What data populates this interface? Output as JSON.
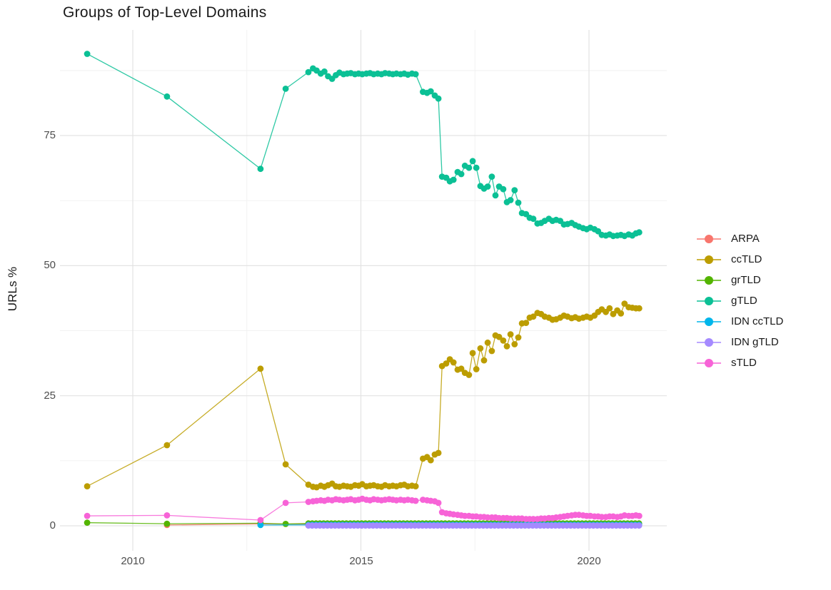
{
  "title": "Groups of Top-Level Domains",
  "chart_data": {
    "type": "line",
    "title": "Groups of Top-Level Domains",
    "xlabel": "",
    "ylabel": "URLs %",
    "xlim": [
      2008.4,
      2021.8
    ],
    "ylim": [
      -4.5,
      95.5
    ],
    "grid": "on",
    "legend_position": "right",
    "x_ticks": {
      "values": [
        2010,
        2015,
        2020
      ],
      "labels": [
        "2010",
        "2015",
        "2020"
      ]
    },
    "x_minor_ticks": [
      2012.5,
      2017.5
    ],
    "y_ticks": {
      "values": [
        0,
        25,
        50,
        75
      ],
      "labels": [
        "0",
        "25",
        "50",
        "75"
      ]
    },
    "y_minor_ticks": [
      12.5,
      37.5,
      62.5,
      87.5
    ],
    "colors": {
      "major_grid": "#e3e3e3",
      "minor_grid": "#f1f1f1",
      "tick_text": "#4d4d4d",
      "title_text": "#191919"
    },
    "series": [
      {
        "name": "ARPA",
        "color": "#F8766D",
        "points": [
          [
            2010.75,
            0.15
          ],
          [
            2012.8,
            0.35
          ],
          {
            "x0": 2013.85,
            "x1": 2021.1,
            "dx": 0.0833,
            "y": 0.3
          }
        ]
      },
      {
        "name": "ccTLD",
        "color": "#BC9D00",
        "points": [
          [
            2009.0,
            7.6
          ],
          [
            2010.75,
            15.5
          ],
          [
            2012.8,
            30.2
          ],
          [
            2013.35,
            11.8
          ],
          [
            2013.85,
            7.9
          ],
          [
            2013.95,
            7.5
          ],
          [
            2014.03,
            7.4
          ],
          [
            2014.12,
            7.7
          ],
          [
            2014.2,
            7.5
          ],
          [
            2014.28,
            7.8
          ],
          [
            2014.37,
            8.1
          ],
          [
            2014.45,
            7.6
          ],
          [
            2014.53,
            7.5
          ],
          [
            2014.62,
            7.7
          ],
          [
            2014.7,
            7.6
          ],
          [
            2014.78,
            7.5
          ],
          [
            2014.87,
            7.8
          ],
          [
            2014.95,
            7.7
          ],
          [
            2015.03,
            8.0
          ],
          [
            2015.12,
            7.6
          ],
          [
            2015.2,
            7.7
          ],
          [
            2015.28,
            7.8
          ],
          [
            2015.37,
            7.6
          ],
          [
            2015.45,
            7.5
          ],
          [
            2015.53,
            7.8
          ],
          [
            2015.62,
            7.6
          ],
          [
            2015.7,
            7.7
          ],
          [
            2015.78,
            7.6
          ],
          [
            2015.87,
            7.8
          ],
          [
            2015.95,
            7.9
          ],
          [
            2016.03,
            7.6
          ],
          [
            2016.12,
            7.7
          ],
          [
            2016.2,
            7.6
          ],
          [
            2016.36,
            12.9
          ],
          [
            2016.45,
            13.2
          ],
          [
            2016.53,
            12.6
          ],
          [
            2016.62,
            13.7
          ],
          [
            2016.7,
            14.0
          ],
          [
            2016.78,
            30.7
          ],
          [
            2016.87,
            31.2
          ],
          [
            2016.95,
            32.0
          ],
          [
            2017.03,
            31.4
          ],
          [
            2017.12,
            30.0
          ],
          [
            2017.2,
            30.2
          ],
          [
            2017.28,
            29.4
          ],
          [
            2017.37,
            29.0
          ],
          [
            2017.45,
            33.2
          ],
          [
            2017.53,
            30.1
          ],
          [
            2017.62,
            34.1
          ],
          [
            2017.7,
            31.8
          ],
          [
            2017.78,
            35.2
          ],
          [
            2017.87,
            33.6
          ],
          [
            2017.95,
            36.6
          ],
          [
            2018.03,
            36.3
          ],
          [
            2018.12,
            35.6
          ],
          [
            2018.2,
            34.5
          ],
          [
            2018.28,
            36.8
          ],
          [
            2018.37,
            34.9
          ],
          [
            2018.45,
            36.2
          ],
          [
            2018.53,
            38.9
          ],
          [
            2018.62,
            39.0
          ],
          [
            2018.7,
            40.0
          ],
          [
            2018.78,
            40.2
          ],
          [
            2018.87,
            40.9
          ],
          [
            2018.95,
            40.7
          ],
          [
            2019.03,
            40.2
          ],
          [
            2019.12,
            40.0
          ],
          [
            2019.2,
            39.6
          ],
          [
            2019.28,
            39.7
          ],
          [
            2019.37,
            40.0
          ],
          [
            2019.45,
            40.4
          ],
          [
            2019.53,
            40.2
          ],
          [
            2019.62,
            39.9
          ],
          [
            2019.7,
            40.1
          ],
          [
            2019.78,
            39.8
          ],
          [
            2019.87,
            40.0
          ],
          [
            2019.95,
            40.2
          ],
          [
            2020.03,
            40.0
          ],
          [
            2020.12,
            40.4
          ],
          [
            2020.2,
            41.1
          ],
          [
            2020.28,
            41.6
          ],
          [
            2020.37,
            41.1
          ],
          [
            2020.45,
            41.8
          ],
          [
            2020.53,
            40.7
          ],
          [
            2020.62,
            41.4
          ],
          [
            2020.7,
            40.8
          ],
          [
            2020.78,
            42.7
          ],
          [
            2020.87,
            42.0
          ],
          [
            2020.95,
            41.9
          ],
          [
            2021.03,
            41.8
          ],
          [
            2021.1,
            41.8
          ]
        ]
      },
      {
        "name": "grTLD",
        "color": "#53B400",
        "points": [
          [
            2009.0,
            0.6
          ],
          [
            2010.75,
            0.4
          ],
          [
            2012.8,
            0.5
          ],
          [
            2013.35,
            0.35
          ],
          {
            "x0": 2013.85,
            "x1": 2021.1,
            "dx": 0.0833,
            "y": 0.45
          }
        ]
      },
      {
        "name": "gTLD",
        "color": "#0BC095",
        "points": [
          [
            2009.0,
            90.7
          ],
          [
            2010.75,
            82.5
          ],
          [
            2012.8,
            68.6
          ],
          [
            2013.35,
            84.0
          ],
          [
            2013.85,
            87.2
          ],
          [
            2013.95,
            87.9
          ],
          [
            2014.03,
            87.5
          ],
          [
            2014.12,
            86.9
          ],
          [
            2014.2,
            87.3
          ],
          [
            2014.28,
            86.4
          ],
          [
            2014.37,
            85.9
          ],
          [
            2014.45,
            86.6
          ],
          [
            2014.53,
            87.1
          ],
          [
            2014.62,
            86.8
          ],
          [
            2014.7,
            86.9
          ],
          [
            2014.78,
            87.0
          ],
          [
            2014.87,
            86.8
          ],
          [
            2014.95,
            86.9
          ],
          [
            2015.03,
            86.8
          ],
          [
            2015.12,
            86.9
          ],
          [
            2015.2,
            87.0
          ],
          [
            2015.28,
            86.8
          ],
          [
            2015.37,
            86.9
          ],
          [
            2015.45,
            86.8
          ],
          [
            2015.53,
            87.0
          ],
          [
            2015.62,
            86.9
          ],
          [
            2015.7,
            86.8
          ],
          [
            2015.78,
            86.9
          ],
          [
            2015.87,
            86.8
          ],
          [
            2015.95,
            86.9
          ],
          [
            2016.03,
            86.7
          ],
          [
            2016.12,
            86.9
          ],
          [
            2016.2,
            86.8
          ],
          [
            2016.36,
            83.4
          ],
          [
            2016.45,
            83.2
          ],
          [
            2016.53,
            83.5
          ],
          [
            2016.62,
            82.7
          ],
          [
            2016.7,
            82.1
          ],
          [
            2016.78,
            67.1
          ],
          [
            2016.87,
            66.9
          ],
          [
            2016.95,
            66.2
          ],
          [
            2017.03,
            66.5
          ],
          [
            2017.12,
            68.0
          ],
          [
            2017.2,
            67.6
          ],
          [
            2017.28,
            69.2
          ],
          [
            2017.37,
            68.8
          ],
          [
            2017.45,
            70.1
          ],
          [
            2017.53,
            68.8
          ],
          [
            2017.62,
            65.3
          ],
          [
            2017.7,
            64.8
          ],
          [
            2017.78,
            65.2
          ],
          [
            2017.87,
            67.1
          ],
          [
            2017.95,
            63.5
          ],
          [
            2018.03,
            65.2
          ],
          [
            2018.12,
            64.7
          ],
          [
            2018.2,
            62.2
          ],
          [
            2018.28,
            62.6
          ],
          [
            2018.37,
            64.5
          ],
          [
            2018.45,
            62.1
          ],
          [
            2018.53,
            60.1
          ],
          [
            2018.62,
            59.9
          ],
          [
            2018.7,
            59.2
          ],
          [
            2018.78,
            59.0
          ],
          [
            2018.87,
            58.1
          ],
          [
            2018.95,
            58.2
          ],
          [
            2019.03,
            58.6
          ],
          [
            2019.12,
            59.0
          ],
          [
            2019.2,
            58.6
          ],
          [
            2019.28,
            58.8
          ],
          [
            2019.37,
            58.6
          ],
          [
            2019.45,
            57.9
          ],
          [
            2019.53,
            58.0
          ],
          [
            2019.62,
            58.2
          ],
          [
            2019.7,
            57.8
          ],
          [
            2019.78,
            57.5
          ],
          [
            2019.87,
            57.2
          ],
          [
            2019.95,
            57.0
          ],
          [
            2020.03,
            57.3
          ],
          [
            2020.12,
            57.0
          ],
          [
            2020.2,
            56.6
          ],
          [
            2020.28,
            55.9
          ],
          [
            2020.37,
            55.8
          ],
          [
            2020.45,
            56.0
          ],
          [
            2020.53,
            55.7
          ],
          [
            2020.62,
            55.8
          ],
          [
            2020.7,
            55.9
          ],
          [
            2020.78,
            55.7
          ],
          [
            2020.87,
            56.0
          ],
          [
            2020.95,
            55.8
          ],
          [
            2021.03,
            56.2
          ],
          [
            2021.1,
            56.4
          ]
        ]
      },
      {
        "name": "IDN ccTLD",
        "color": "#00B6EB",
        "points": [
          [
            2012.8,
            0.15
          ],
          {
            "x0": 2013.85,
            "x1": 2021.1,
            "dx": 0.0833,
            "y": 0.18
          }
        ]
      },
      {
        "name": "IDN gTLD",
        "color": "#A58AFF",
        "points": [
          {
            "x0": 2013.85,
            "x1": 2021.1,
            "dx": 0.0833,
            "y": 0.04
          }
        ]
      },
      {
        "name": "sTLD",
        "color": "#F763D7",
        "points": [
          [
            2009.0,
            1.9
          ],
          [
            2010.75,
            2.0
          ],
          [
            2012.8,
            1.1
          ],
          [
            2013.35,
            4.4
          ],
          [
            2013.85,
            4.6
          ],
          [
            2013.95,
            4.7
          ],
          [
            2014.03,
            4.8
          ],
          [
            2014.12,
            4.9
          ],
          [
            2014.2,
            4.8
          ],
          [
            2014.28,
            5.0
          ],
          [
            2014.37,
            4.9
          ],
          [
            2014.45,
            5.1
          ],
          [
            2014.53,
            5.0
          ],
          [
            2014.62,
            4.9
          ],
          [
            2014.7,
            5.0
          ],
          [
            2014.78,
            5.1
          ],
          [
            2014.87,
            4.9
          ],
          [
            2014.95,
            5.0
          ],
          [
            2015.03,
            5.2
          ],
          [
            2015.12,
            5.0
          ],
          [
            2015.2,
            4.9
          ],
          [
            2015.28,
            5.1
          ],
          [
            2015.37,
            5.0
          ],
          [
            2015.45,
            4.9
          ],
          [
            2015.53,
            5.0
          ],
          [
            2015.62,
            5.1
          ],
          [
            2015.7,
            5.0
          ],
          [
            2015.78,
            4.9
          ],
          [
            2015.87,
            5.0
          ],
          [
            2015.95,
            4.9
          ],
          [
            2016.03,
            5.0
          ],
          [
            2016.12,
            4.9
          ],
          [
            2016.2,
            4.8
          ],
          [
            2016.36,
            5.0
          ],
          [
            2016.45,
            4.9
          ],
          [
            2016.53,
            4.8
          ],
          [
            2016.62,
            4.7
          ],
          [
            2016.7,
            4.4
          ],
          [
            2016.78,
            2.6
          ],
          [
            2016.87,
            2.4
          ],
          [
            2016.95,
            2.3
          ],
          [
            2017.03,
            2.2
          ],
          [
            2017.12,
            2.1
          ],
          [
            2017.2,
            2.0
          ],
          [
            2017.28,
            1.9
          ],
          [
            2017.37,
            1.9
          ],
          [
            2017.45,
            1.8
          ],
          [
            2017.53,
            1.8
          ],
          [
            2017.62,
            1.7
          ],
          [
            2017.7,
            1.7
          ],
          [
            2017.78,
            1.6
          ],
          [
            2017.87,
            1.6
          ],
          [
            2017.95,
            1.6
          ],
          [
            2018.03,
            1.5
          ],
          [
            2018.12,
            1.5
          ],
          [
            2018.2,
            1.5
          ],
          [
            2018.28,
            1.4
          ],
          [
            2018.37,
            1.4
          ],
          [
            2018.45,
            1.4
          ],
          [
            2018.53,
            1.4
          ],
          [
            2018.62,
            1.3
          ],
          [
            2018.7,
            1.3
          ],
          [
            2018.78,
            1.3
          ],
          [
            2018.87,
            1.3
          ],
          [
            2018.95,
            1.4
          ],
          [
            2019.03,
            1.4
          ],
          [
            2019.12,
            1.5
          ],
          [
            2019.2,
            1.5
          ],
          [
            2019.28,
            1.6
          ],
          [
            2019.37,
            1.7
          ],
          [
            2019.45,
            1.8
          ],
          [
            2019.53,
            1.9
          ],
          [
            2019.62,
            2.0
          ],
          [
            2019.7,
            2.1
          ],
          [
            2019.78,
            2.1
          ],
          [
            2019.87,
            2.0
          ],
          [
            2019.95,
            1.9
          ],
          [
            2020.03,
            1.9
          ],
          [
            2020.12,
            1.8
          ],
          [
            2020.2,
            1.8
          ],
          [
            2020.28,
            1.7
          ],
          [
            2020.37,
            1.7
          ],
          [
            2020.45,
            1.8
          ],
          [
            2020.53,
            1.8
          ],
          [
            2020.62,
            1.7
          ],
          [
            2020.7,
            1.8
          ],
          [
            2020.78,
            2.0
          ],
          [
            2020.87,
            1.9
          ],
          [
            2020.95,
            1.9
          ],
          [
            2021.03,
            2.0
          ],
          [
            2021.1,
            1.9
          ]
        ]
      }
    ],
    "legend_entries": [
      "ARPA",
      "ccTLD",
      "grTLD",
      "gTLD",
      "IDN ccTLD",
      "IDN gTLD",
      "sTLD"
    ]
  }
}
